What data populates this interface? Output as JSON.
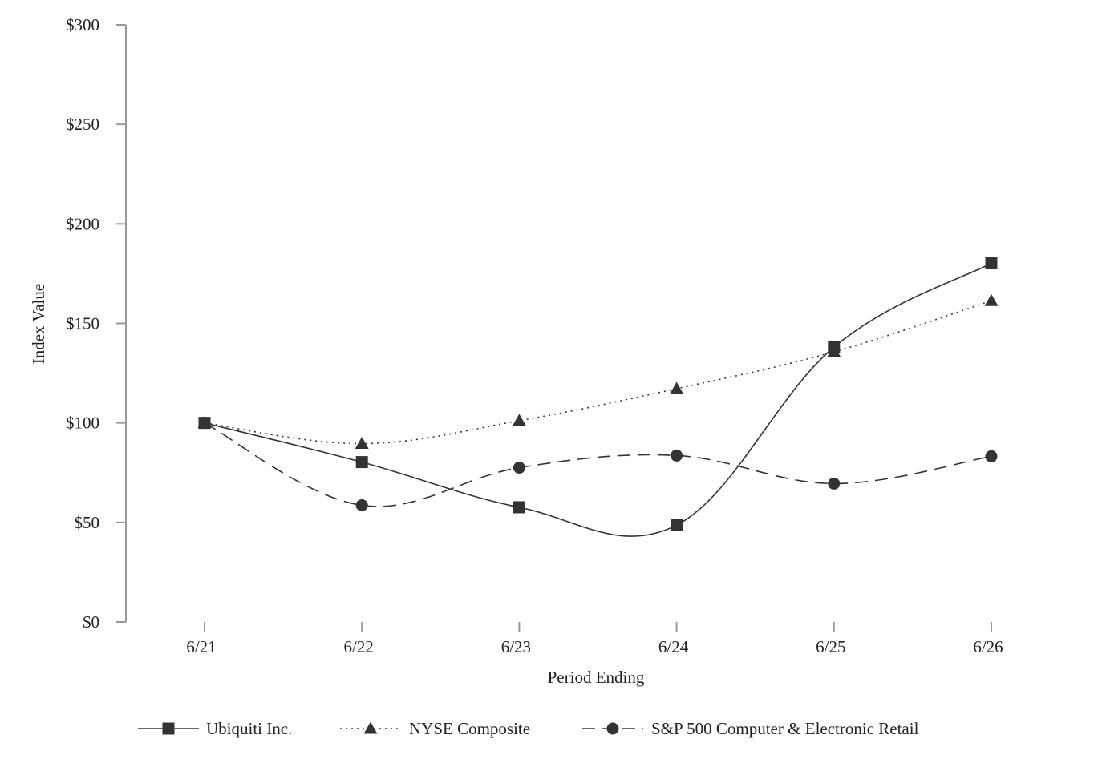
{
  "chart_data": {
    "type": "line",
    "title": "",
    "xlabel": "Period Ending",
    "ylabel": "Index Value",
    "categories": [
      "6/21",
      "6/22",
      "6/23",
      "6/24",
      "6/25",
      "6/26"
    ],
    "ylim": [
      0,
      300
    ],
    "yticks": [
      0,
      50,
      100,
      150,
      200,
      250,
      300
    ],
    "ytick_labels": [
      "$0",
      "$50",
      "$100",
      "$150",
      "$200",
      "$250",
      "$300"
    ],
    "grid": false,
    "legend_position": "bottom",
    "series": [
      {
        "name": "Ubiquiti Inc.",
        "values": [
          100,
          80.3,
          57.6,
          48.6,
          138.1,
          180.2
        ],
        "marker": "square",
        "line_style": "solid",
        "color": "#333333"
      },
      {
        "name": "NYSE Composite",
        "values": [
          100,
          89.6,
          101.1,
          117.2,
          135.7,
          161.4
        ],
        "marker": "triangle",
        "line_style": "dotted",
        "color": "#333333"
      },
      {
        "name": "S&P 500 Computer & Electronic Retail",
        "values": [
          100,
          58.6,
          77.5,
          83.6,
          69.5,
          83.2
        ],
        "marker": "circle",
        "line_style": "dashed",
        "color": "#333333"
      }
    ]
  }
}
